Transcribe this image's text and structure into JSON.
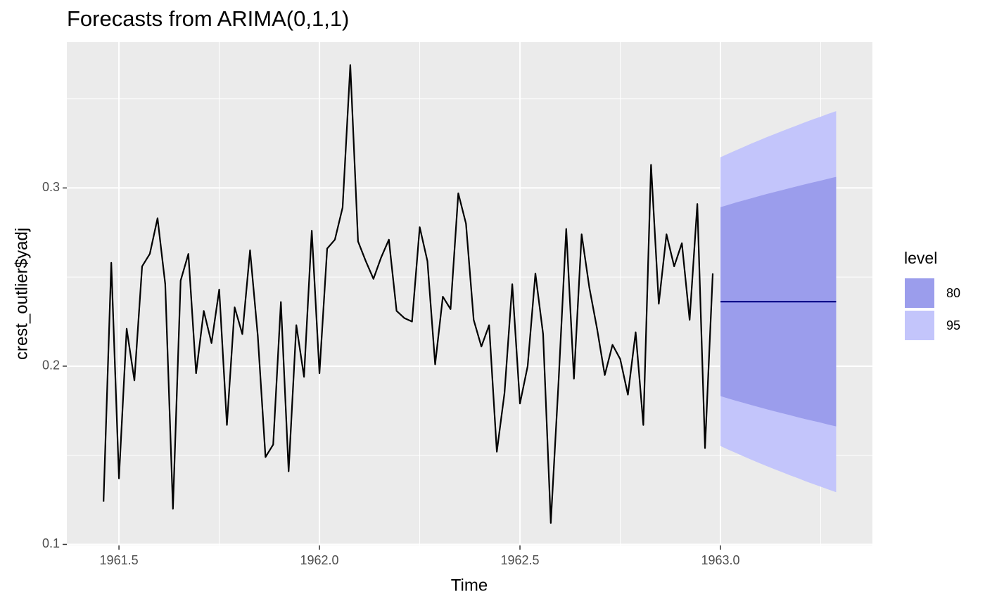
{
  "chart_data": {
    "type": "line",
    "title": "Forecasts from ARIMA(0,1,1)",
    "x_label": "Time",
    "y_label": "crest_outlier$yadj",
    "xlim": [
      1961.37,
      1963.379
    ],
    "ylim": [
      0.0994,
      0.3818
    ],
    "xticks": [
      1961.5,
      {
        "value": 1962,
        "label": "1962.0"
      },
      1962.5,
      {
        "value": 1963,
        "label": "1963.0"
      }
    ],
    "yticks": [
      0.1,
      0.2,
      0.3
    ],
    "xminor": [
      1961.75,
      1962.25,
      1962.75,
      1963.25
    ],
    "yminor": [
      0.15,
      0.25,
      0.35
    ],
    "grid": true,
    "series": [
      {
        "color": "#000000",
        "x": [
          1961.4615,
          1961.4808,
          1961.5,
          1961.5192,
          1961.5385,
          1961.5577,
          1961.5769,
          1961.5962,
          1961.6154,
          1961.6346,
          1961.6538,
          1961.6731,
          1961.6923,
          1961.7115,
          1961.7308,
          1961.75,
          1961.7692,
          1961.7885,
          1961.8077,
          1961.8269,
          1961.8462,
          1961.8654,
          1961.8846,
          1961.9038,
          1961.9231,
          1961.9423,
          1961.9615,
          1961.9808,
          1962.0,
          1962.0192,
          1962.0385,
          1962.0577,
          1962.0769,
          1962.0962,
          1962.1154,
          1962.1346,
          1962.1538,
          1962.1731,
          1962.1923,
          1962.2115,
          1962.2308,
          1962.25,
          1962.2692,
          1962.2885,
          1962.3077,
          1962.3269,
          1962.3462,
          1962.3654,
          1962.3846,
          1962.4038,
          1962.4231,
          1962.4423,
          1962.4615,
          1962.4808,
          1962.5,
          1962.5192,
          1962.5385,
          1962.5577,
          1962.5769,
          1962.5962,
          1962.6154,
          1962.6346,
          1962.6538,
          1962.6731,
          1962.6923,
          1962.7115,
          1962.7308,
          1962.75,
          1962.7692,
          1962.7885,
          1962.8077,
          1962.8269,
          1962.8462,
          1962.8654,
          1962.8846,
          1962.9038,
          1962.9231,
          1962.9423,
          1962.9615,
          1962.9808
        ],
        "values": [
          0.124,
          0.258,
          0.137,
          0.221,
          0.192,
          0.256,
          0.263,
          0.283,
          0.246,
          0.12,
          0.248,
          0.263,
          0.196,
          0.231,
          0.213,
          0.243,
          0.167,
          0.233,
          0.218,
          0.265,
          0.217,
          0.149,
          0.156,
          0.236,
          0.141,
          0.223,
          0.194,
          0.276,
          0.196,
          0.266,
          0.271,
          0.289,
          0.369,
          0.27,
          0.259,
          0.249,
          0.261,
          0.271,
          0.231,
          0.227,
          0.225,
          0.278,
          0.259,
          0.201,
          0.239,
          0.232,
          0.297,
          0.28,
          0.226,
          0.211,
          0.223,
          0.152,
          0.185,
          0.246,
          0.179,
          0.2,
          0.252,
          0.218,
          0.112,
          0.191,
          0.277,
          0.193,
          0.274,
          0.244,
          0.221,
          0.195,
          0.212,
          0.204,
          0.184,
          0.219,
          0.167,
          0.313,
          0.235,
          0.274,
          0.256,
          0.269,
          0.226,
          0.291,
          0.154,
          0.252
        ]
      },
      {
        "color": "#00008b",
        "x": [
          1963.0,
          1963.0192,
          1963.0385,
          1963.0577,
          1963.0769,
          1963.0962,
          1963.1154,
          1963.1346,
          1963.1538,
          1963.1731,
          1963.1923,
          1963.2115,
          1963.2308,
          1963.25,
          1963.2692,
          1963.2885
        ],
        "values": [
          0.2362,
          0.2362,
          0.2362,
          0.2362,
          0.2362,
          0.2362,
          0.2362,
          0.2362,
          0.2362,
          0.2362,
          0.2362,
          0.2362,
          0.2362,
          0.2362,
          0.2362,
          0.2362
        ]
      }
    ],
    "legend_title": "level",
    "bands": [
      {
        "name": "80",
        "color": "#9b9dec",
        "lower": [
          0.1832,
          0.1819,
          0.1806,
          0.1794,
          0.1782,
          0.177,
          0.1758,
          0.1747,
          0.1736,
          0.1725,
          0.1714,
          0.1703,
          0.1693,
          0.1683,
          0.1672,
          0.1662
        ],
        "upper": [
          0.2892,
          0.2905,
          0.2918,
          0.293,
          0.2942,
          0.2954,
          0.2966,
          0.2977,
          0.2988,
          0.2999,
          0.301,
          0.3021,
          0.3031,
          0.3041,
          0.3052,
          0.3062
        ]
      },
      {
        "name": "95",
        "color": "#c3c5fb",
        "lower": [
          0.1552,
          0.1532,
          0.1513,
          0.1494,
          0.1475,
          0.1457,
          0.1439,
          0.1422,
          0.1405,
          0.1388,
          0.1372,
          0.1355,
          0.1339,
          0.1324,
          0.1308,
          0.1293
        ],
        "upper": [
          0.3172,
          0.3192,
          0.3211,
          0.323,
          0.3249,
          0.3267,
          0.3285,
          0.3302,
          0.3319,
          0.3336,
          0.3352,
          0.3369,
          0.3385,
          0.34,
          0.3416,
          0.3431
        ]
      }
    ]
  }
}
